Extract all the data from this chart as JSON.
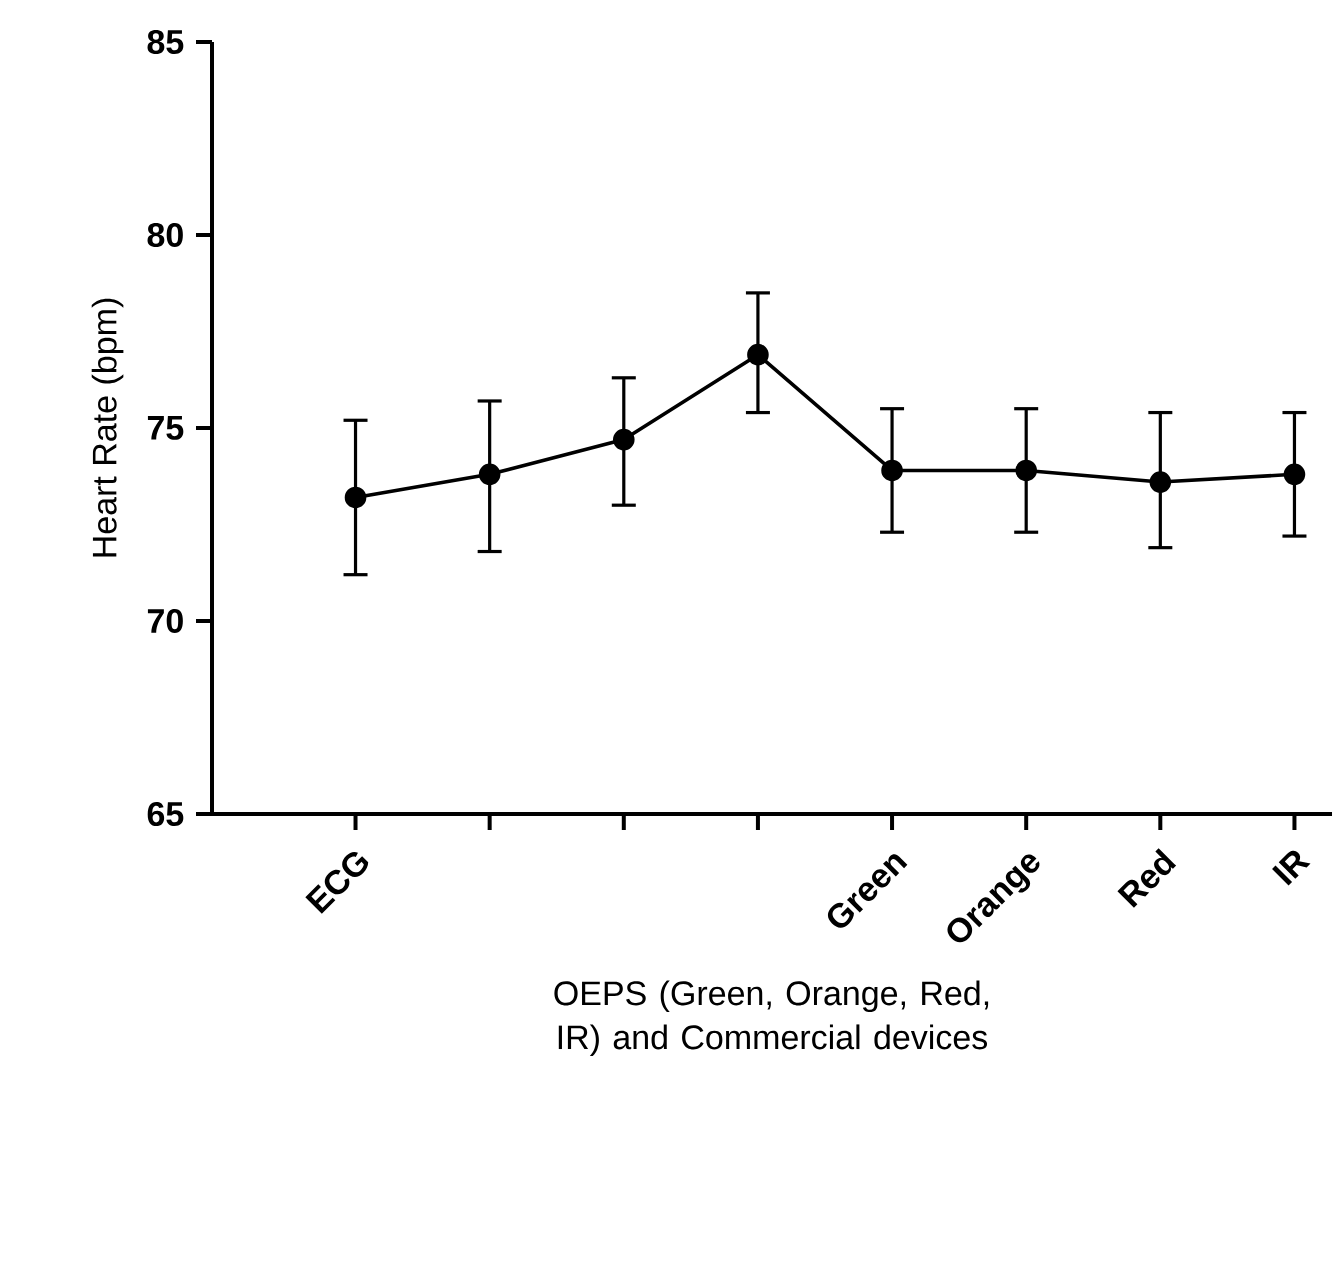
{
  "chart_data": {
    "type": "line",
    "xlabel": "OEPS (Green, Orange, Red, IR) and Commercial devices",
    "ylabel": "Heart Rate (bpm)",
    "categories": [
      "ECG",
      null,
      null,
      null,
      "Green",
      "Orange",
      "Red",
      "IR"
    ],
    "series": [
      {
        "color": "#000000",
        "values": [
          73.2,
          73.8,
          74.7,
          76.9,
          73.9,
          73.9,
          73.6,
          73.8
        ],
        "errors": [
          [
            71.2,
            75.2
          ],
          [
            71.8,
            75.7
          ],
          [
            73.0,
            76.3
          ],
          [
            75.4,
            78.5
          ],
          [
            72.3,
            75.5
          ],
          [
            72.3,
            75.5
          ],
          [
            71.9,
            75.4
          ],
          [
            72.2,
            75.4
          ]
        ]
      }
    ],
    "ylim": [
      65,
      85
    ],
    "yticks": [
      65,
      70,
      75,
      80,
      85
    ],
    "marker": "circle",
    "line_style": "solid"
  }
}
